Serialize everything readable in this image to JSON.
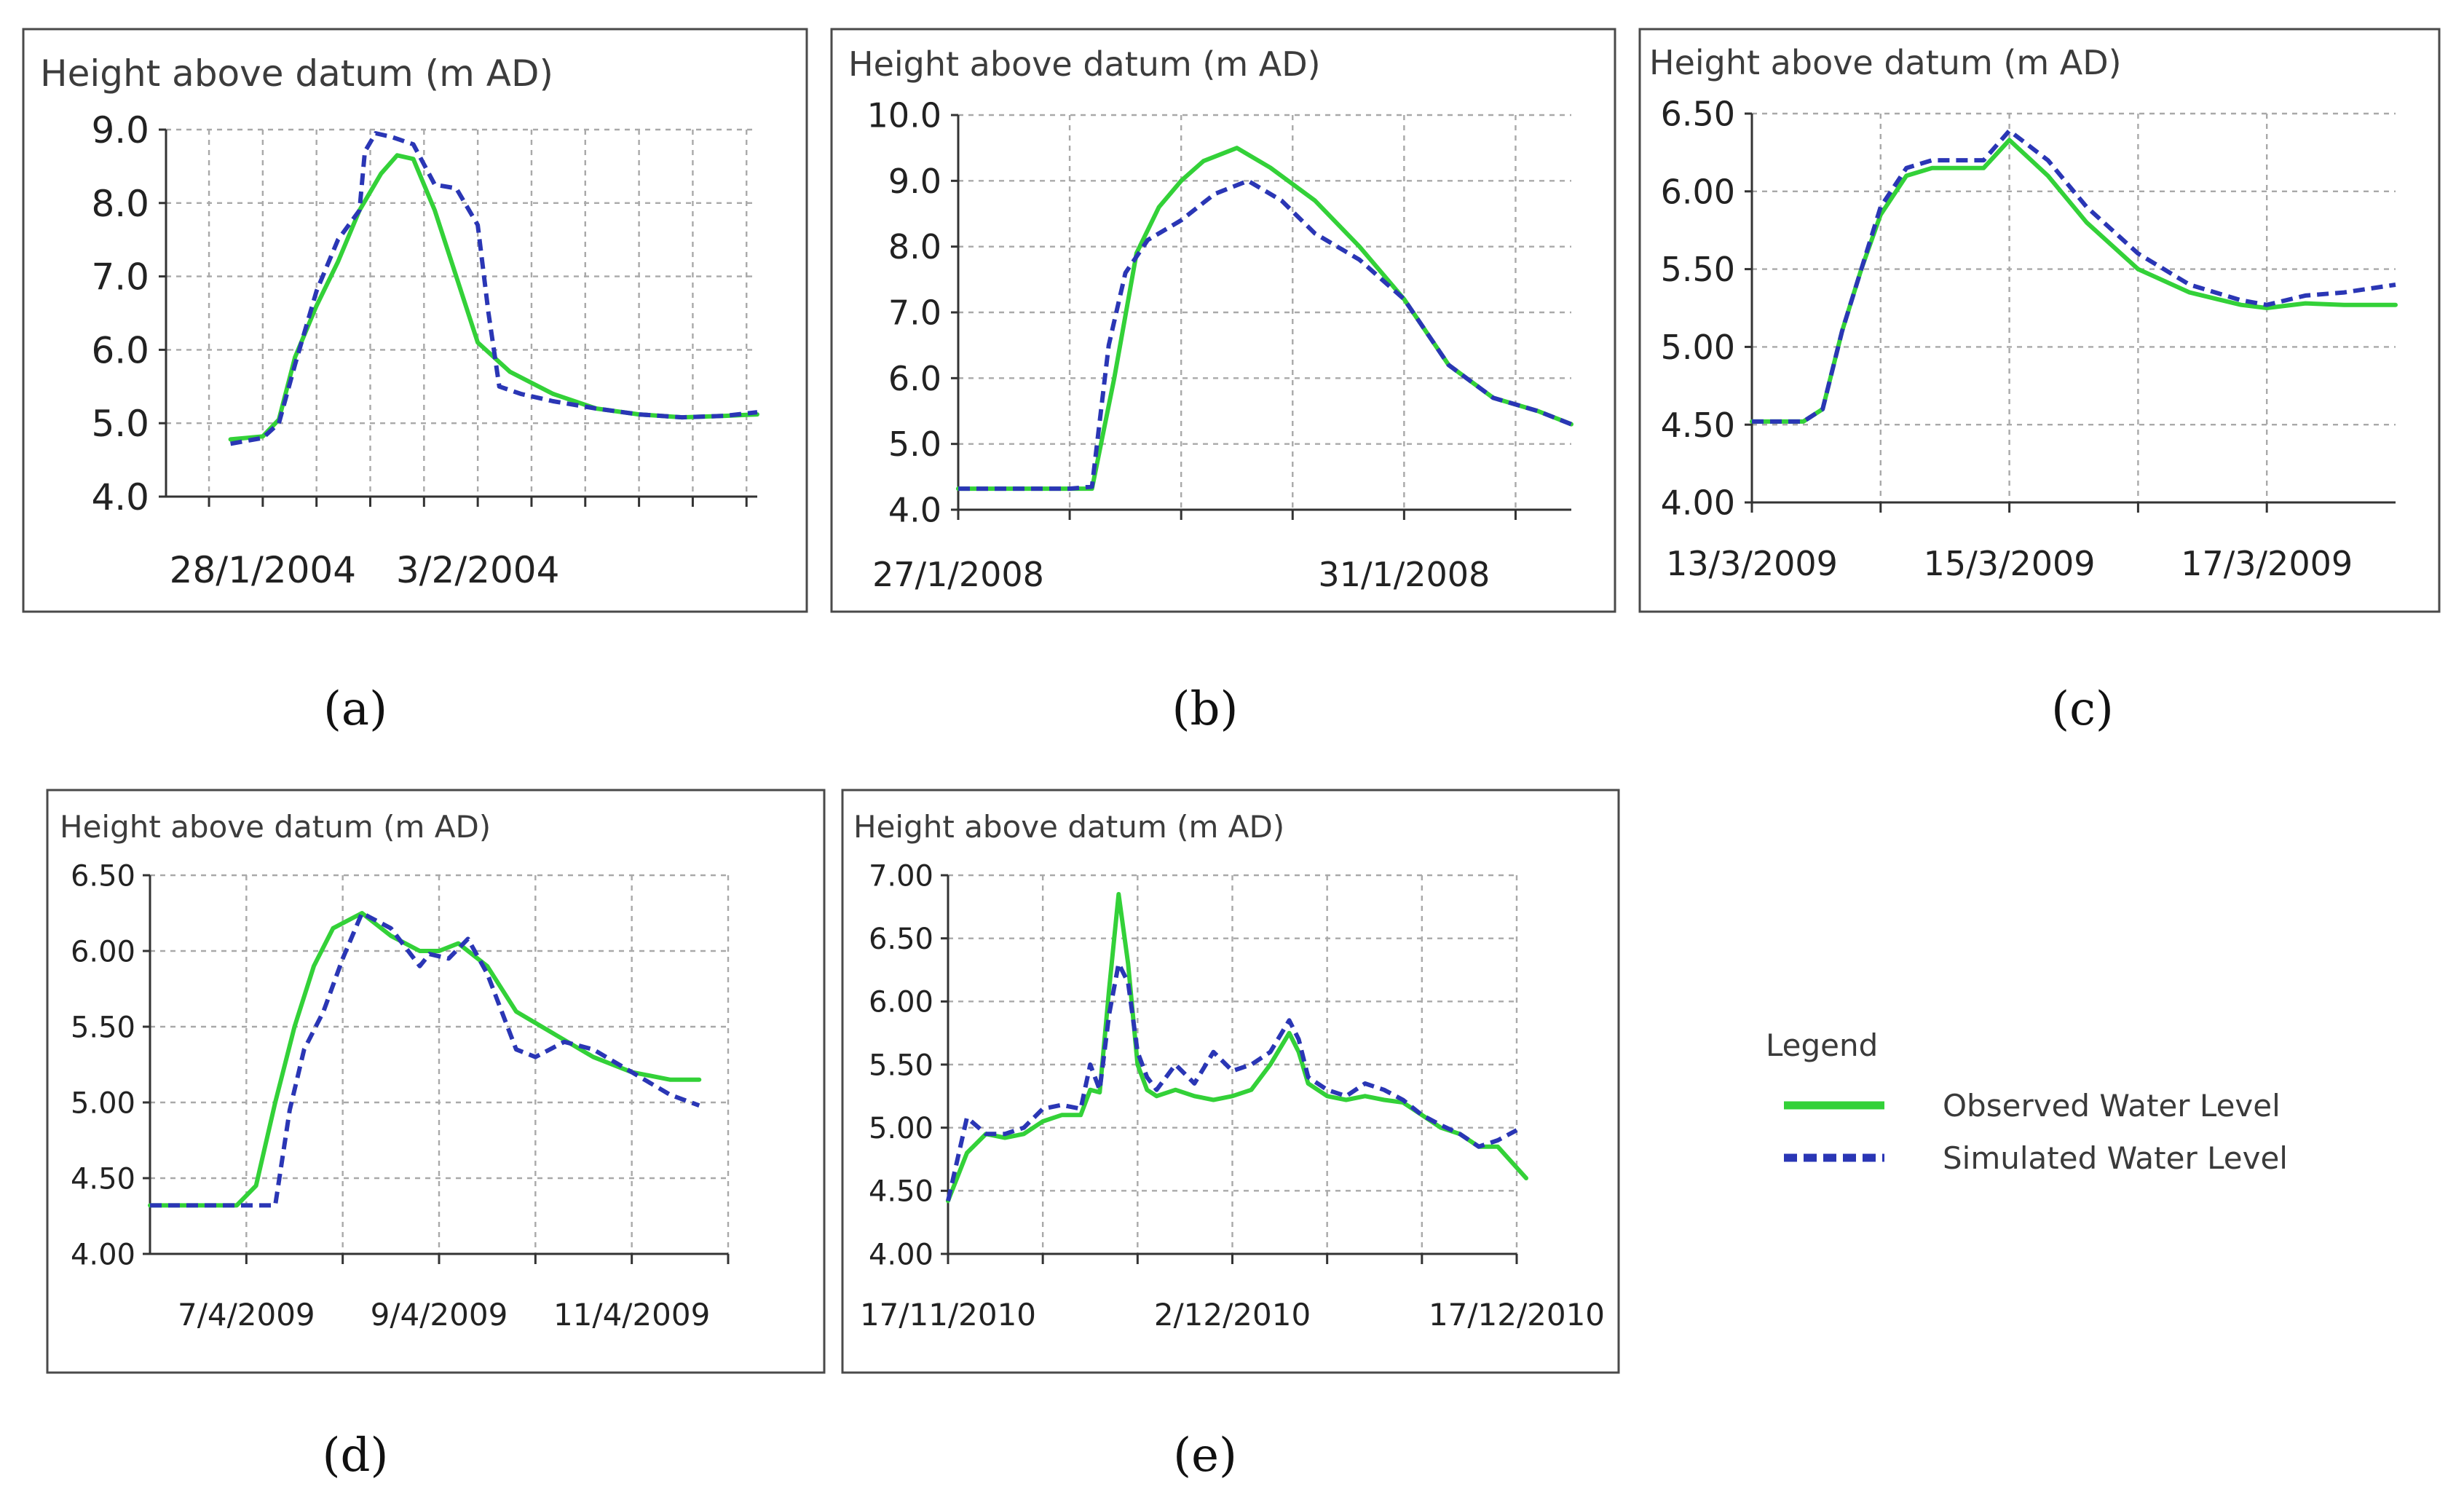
{
  "figure": {
    "captions": [
      "(a)",
      "(b)",
      "(c)",
      "(d)",
      "(e)"
    ]
  },
  "colors": {
    "observed": "#33d138",
    "simulated": "#2a36b5",
    "grid": "#a9a9a9",
    "frame": "#4a4a4a"
  },
  "legend": {
    "title": "Legend",
    "observed_label": "Observed Water Level",
    "simulated_label": "Simulated Water Level"
  },
  "chart_data": [
    {
      "id": "a",
      "type": "line",
      "caption": "(a)",
      "title": "Height above datum (m AD)",
      "xlabel": "",
      "ylabel": "Height above datum (m AD)",
      "xlim": [
        0,
        5.5
      ],
      "ylim": [
        4.0,
        9.0
      ],
      "yticks": [
        "9.0",
        "8.0",
        "7.0",
        "6.0",
        "5.0",
        "4.0"
      ],
      "xtick_positions": [
        0.4,
        0.9,
        1.4,
        1.9,
        2.4,
        2.9,
        3.4,
        3.9,
        4.4,
        4.9,
        5.4
      ],
      "xtick_labels": [
        {
          "pos": 0.9,
          "text": "28/1/2004"
        },
        {
          "pos": 2.9,
          "text": "3/2/2004"
        }
      ],
      "series": [
        {
          "name": "Observed Water Level",
          "x": [
            0.6,
            0.9,
            1.05,
            1.2,
            1.4,
            1.6,
            1.8,
            2.0,
            2.15,
            2.3,
            2.5,
            2.7,
            2.9,
            3.2,
            3.6,
            4.0,
            4.4,
            4.8,
            5.2,
            5.5
          ],
          "y": [
            4.78,
            4.82,
            5.05,
            5.9,
            6.6,
            7.2,
            7.9,
            8.4,
            8.65,
            8.6,
            7.9,
            7.0,
            6.1,
            5.7,
            5.4,
            5.2,
            5.12,
            5.08,
            5.1,
            5.12
          ]
        },
        {
          "name": "Simulated Water Level",
          "x": [
            0.6,
            0.9,
            1.05,
            1.2,
            1.4,
            1.6,
            1.8,
            1.85,
            1.95,
            2.1,
            2.3,
            2.5,
            2.7,
            2.9,
            3.0,
            3.1,
            3.3,
            3.6,
            4.0,
            4.4,
            4.8,
            5.2,
            5.5
          ],
          "y": [
            4.72,
            4.8,
            5.0,
            5.8,
            6.8,
            7.5,
            7.9,
            8.7,
            8.95,
            8.9,
            8.8,
            8.25,
            8.2,
            7.7,
            6.5,
            5.5,
            5.4,
            5.3,
            5.2,
            5.12,
            5.08,
            5.1,
            5.15
          ]
        }
      ]
    },
    {
      "id": "b",
      "type": "line",
      "caption": "(b)",
      "title": "Height above datum (m AD)",
      "xlabel": "",
      "ylabel": "Height above datum (m AD)",
      "xlim": [
        0,
        5.5
      ],
      "ylim": [
        4.0,
        10.0
      ],
      "yticks": [
        "10.0",
        "9.0",
        "8.0",
        "7.0",
        "6.0",
        "5.0",
        "4.0"
      ],
      "xtick_positions": [
        0,
        1.0,
        2.0,
        3.0,
        4.0,
        5.0
      ],
      "xtick_labels": [
        {
          "pos": 0,
          "text": "27/1/2008"
        },
        {
          "pos": 4.0,
          "text": "31/1/2008"
        }
      ],
      "series": [
        {
          "name": "Observed Water Level",
          "x": [
            0,
            1.0,
            1.2,
            1.4,
            1.6,
            1.8,
            2.0,
            2.2,
            2.5,
            2.8,
            3.2,
            3.6,
            4.0,
            4.4,
            4.8,
            5.2,
            5.5
          ],
          "y": [
            4.32,
            4.32,
            4.32,
            6.0,
            7.9,
            8.6,
            9.0,
            9.3,
            9.5,
            9.2,
            8.7,
            8.0,
            7.2,
            6.2,
            5.7,
            5.5,
            5.3
          ]
        },
        {
          "name": "Simulated Water Level",
          "x": [
            0,
            1.0,
            1.2,
            1.35,
            1.5,
            1.7,
            2.0,
            2.3,
            2.6,
            2.9,
            3.2,
            3.6,
            4.0,
            4.4,
            4.8,
            5.2,
            5.5
          ],
          "y": [
            4.32,
            4.32,
            4.35,
            6.5,
            7.6,
            8.1,
            8.4,
            8.8,
            9.0,
            8.7,
            8.2,
            7.8,
            7.2,
            6.2,
            5.7,
            5.5,
            5.3
          ]
        }
      ]
    },
    {
      "id": "c",
      "type": "line",
      "caption": "(c)",
      "title": "Height above datum (m AD)",
      "xlabel": "",
      "ylabel": "Height above datum (m AD)",
      "xlim": [
        0,
        5.0
      ],
      "ylim": [
        4.0,
        6.5
      ],
      "yticks": [
        "6.50",
        "6.00",
        "5.50",
        "5.00",
        "4.50",
        "4.00"
      ],
      "xtick_positions": [
        0,
        1.0,
        2.0,
        3.0,
        4.0
      ],
      "xtick_labels": [
        {
          "pos": 0,
          "text": "13/3/2009"
        },
        {
          "pos": 2.0,
          "text": "15/3/2009"
        },
        {
          "pos": 4.0,
          "text": "17/3/2009"
        }
      ],
      "series": [
        {
          "name": "Observed Water Level",
          "x": [
            0,
            0.4,
            0.55,
            0.7,
            0.85,
            1.0,
            1.2,
            1.4,
            1.6,
            1.8,
            2.0,
            2.3,
            2.6,
            3.0,
            3.4,
            3.8,
            4.0,
            4.3,
            4.6,
            5.0
          ],
          "y": [
            4.52,
            4.52,
            4.6,
            5.1,
            5.5,
            5.85,
            6.1,
            6.15,
            6.15,
            6.15,
            6.33,
            6.1,
            5.8,
            5.5,
            5.35,
            5.27,
            5.25,
            5.28,
            5.27,
            5.27
          ]
        },
        {
          "name": "Simulated Water Level",
          "x": [
            0,
            0.4,
            0.55,
            0.7,
            0.85,
            1.0,
            1.2,
            1.4,
            1.6,
            1.8,
            2.0,
            2.3,
            2.6,
            3.0,
            3.4,
            3.8,
            4.0,
            4.3,
            4.6,
            5.0
          ],
          "y": [
            4.52,
            4.52,
            4.6,
            5.1,
            5.5,
            5.9,
            6.15,
            6.2,
            6.2,
            6.2,
            6.39,
            6.2,
            5.9,
            5.6,
            5.4,
            5.3,
            5.27,
            5.33,
            5.35,
            5.4
          ]
        }
      ]
    },
    {
      "id": "d",
      "type": "line",
      "caption": "(d)",
      "title": "Height above datum (m AD)",
      "xlabel": "",
      "ylabel": "Height above datum (m AD)",
      "xlim": [
        0,
        6.0
      ],
      "ylim": [
        4.0,
        6.5
      ],
      "yticks": [
        "6.50",
        "6.00",
        "5.50",
        "5.00",
        "4.50",
        "4.00"
      ],
      "xtick_positions": [
        1.0,
        2.0,
        3.0,
        4.0,
        5.0,
        6.0
      ],
      "xtick_labels": [
        {
          "pos": 1.0,
          "text": "7/4/2009"
        },
        {
          "pos": 3.0,
          "text": "9/4/2009"
        },
        {
          "pos": 5.0,
          "text": "11/4/2009"
        }
      ],
      "series": [
        {
          "name": "Observed Water Level",
          "x": [
            0,
            0.9,
            1.1,
            1.3,
            1.5,
            1.7,
            1.9,
            2.2,
            2.5,
            2.8,
            3.0,
            3.2,
            3.5,
            3.8,
            4.2,
            4.6,
            5.0,
            5.4,
            5.7
          ],
          "y": [
            4.32,
            4.32,
            4.45,
            5.0,
            5.5,
            5.9,
            6.15,
            6.25,
            6.1,
            6.0,
            6.0,
            6.05,
            5.9,
            5.6,
            5.45,
            5.3,
            5.2,
            5.15,
            5.15
          ]
        },
        {
          "name": "Simulated Water Level",
          "x": [
            0,
            1.3,
            1.45,
            1.6,
            1.8,
            2.0,
            2.2,
            2.5,
            2.8,
            2.9,
            3.1,
            3.3,
            3.5,
            3.8,
            4.0,
            4.3,
            4.6,
            5.0,
            5.4,
            5.7
          ],
          "y": [
            4.32,
            4.32,
            4.95,
            5.35,
            5.6,
            5.95,
            6.25,
            6.15,
            5.9,
            5.98,
            5.95,
            6.08,
            5.85,
            5.35,
            5.3,
            5.4,
            5.35,
            5.2,
            5.05,
            4.98
          ]
        }
      ]
    },
    {
      "id": "e",
      "type": "line",
      "caption": "(e)",
      "title": "Height above datum (m AD)",
      "xlabel": "",
      "ylabel": "Height above datum (m AD)",
      "xlim": [
        0,
        30.0
      ],
      "ylim": [
        4.0,
        7.0
      ],
      "yticks": [
        "7.00",
        "6.50",
        "6.00",
        "5.50",
        "5.00",
        "4.50",
        "4.00"
      ],
      "xtick_positions": [
        0,
        5.0,
        10.0,
        15.0,
        20.0,
        25.0,
        30.0
      ],
      "xtick_labels": [
        {
          "pos": 0,
          "text": "17/11/2010"
        },
        {
          "pos": 15.0,
          "text": "2/12/2010"
        },
        {
          "pos": 30.0,
          "text": "17/12/2010"
        }
      ],
      "series": [
        {
          "name": "Observed Water Level",
          "x": [
            0,
            1,
            2,
            3,
            4,
            5,
            6,
            7,
            7.5,
            8,
            8.5,
            9,
            9.5,
            10,
            10.5,
            11,
            12,
            13,
            14,
            15,
            16,
            17,
            18,
            18.5,
            19,
            20,
            21,
            22,
            23,
            24,
            25,
            26,
            27,
            28,
            29,
            30.5
          ],
          "y": [
            4.42,
            4.8,
            4.95,
            4.92,
            4.95,
            5.05,
            5.1,
            5.1,
            5.3,
            5.28,
            6.1,
            6.85,
            6.3,
            5.5,
            5.3,
            5.25,
            5.3,
            5.25,
            5.22,
            5.25,
            5.3,
            5.5,
            5.75,
            5.6,
            5.35,
            5.25,
            5.22,
            5.25,
            5.22,
            5.2,
            5.1,
            5.0,
            4.95,
            4.85,
            4.85,
            4.6
          ]
        },
        {
          "name": "Simulated Water Level",
          "x": [
            0,
            1,
            2,
            3,
            4,
            5,
            6,
            7,
            7.5,
            8,
            8.5,
            9,
            9.5,
            10,
            10.5,
            11,
            12,
            13,
            14,
            15,
            16,
            17,
            18,
            18.5,
            19,
            20,
            21,
            22,
            23,
            24,
            25,
            26,
            27,
            28,
            29,
            30
          ],
          "y": [
            4.42,
            5.08,
            4.95,
            4.95,
            5.0,
            5.15,
            5.18,
            5.15,
            5.5,
            5.3,
            5.9,
            6.3,
            6.15,
            5.6,
            5.4,
            5.3,
            5.5,
            5.35,
            5.6,
            5.45,
            5.5,
            5.6,
            5.85,
            5.7,
            5.4,
            5.3,
            5.25,
            5.35,
            5.3,
            5.22,
            5.1,
            5.02,
            4.95,
            4.85,
            4.9,
            4.98
          ]
        }
      ]
    }
  ]
}
